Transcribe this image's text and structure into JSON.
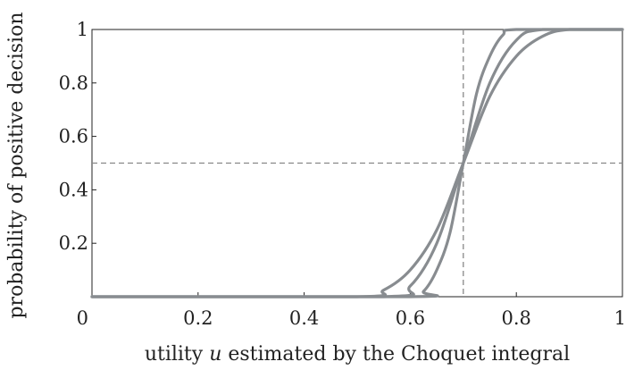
{
  "chart_data": {
    "type": "line",
    "title": "",
    "xlabel_parts": [
      "utility ",
      "u",
      " estimated by the Choquet integral"
    ],
    "ylabel": "probability of positive decision",
    "xlim": [
      0,
      1
    ],
    "ylim": [
      0,
      1
    ],
    "xticks": [
      0,
      0.2,
      0.4,
      0.6,
      0.8,
      1
    ],
    "xtick_labels": [
      "0",
      "0.2",
      "0.4",
      "0.6",
      "0.8",
      "1"
    ],
    "yticks": [
      0.2,
      0.4,
      0.6,
      0.8,
      1
    ],
    "ytick_labels": [
      "0.2",
      "0.4",
      "0.6",
      "0.8",
      "1"
    ],
    "reference_lines": {
      "x": 0.7,
      "y": 0.5
    },
    "grid": false,
    "curve_color": "#888c90",
    "series": [
      {
        "x": [
          0,
          0.5,
          0.55,
          0.6,
          0.65,
          0.7,
          0.75,
          0.8,
          0.85,
          0.9,
          1
        ],
        "values": [
          0,
          0,
          0.025,
          0.1,
          0.25,
          0.5,
          0.75,
          0.9,
          0.975,
          1,
          1
        ]
      },
      {
        "x": [
          0,
          0.55,
          0.6,
          0.65,
          0.7,
          0.75,
          0.8,
          0.85,
          1
        ],
        "values": [
          0,
          0,
          0.04,
          0.2,
          0.5,
          0.8,
          0.96,
          1,
          1
        ]
      },
      {
        "x": [
          0,
          0.6,
          0.625,
          0.65,
          0.675,
          0.7,
          0.725,
          0.75,
          0.775,
          0.8,
          1
        ],
        "values": [
          0,
          0,
          0.02,
          0.1,
          0.24,
          0.5,
          0.76,
          0.9,
          0.98,
          1,
          1
        ]
      }
    ]
  }
}
